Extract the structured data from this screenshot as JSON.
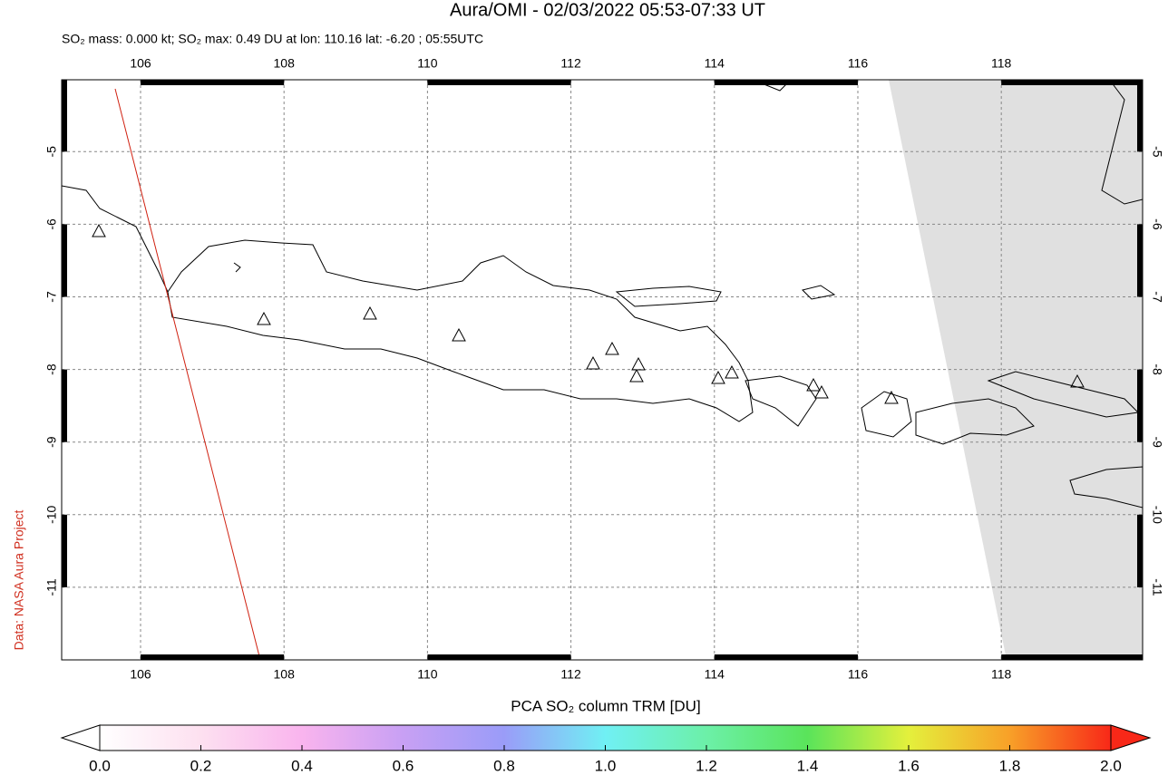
{
  "header": {
    "title": "Aura/OMI - 02/03/2022 05:53-07:33 UT",
    "subtitle": "SO₂ mass: 0.000 kt; SO₂ max: 0.49 DU at lon: 110.16 lat: -6.20 ; 05:55UTC"
  },
  "map": {
    "xlim": [
      104.9,
      119.97
    ],
    "ylim": [
      -12.0,
      -4.01
    ],
    "xticks": [
      106,
      108,
      110,
      112,
      114,
      116,
      118
    ],
    "yticks": [
      -5,
      -6,
      -7,
      -8,
      -9,
      -10,
      -11
    ]
  },
  "colorbar": {
    "label": "PCA SO₂ column TRM [DU]",
    "lim": [
      0,
      2
    ],
    "ticks": [
      {
        "value": 0,
        "label": "0.0"
      },
      0.2,
      0.4,
      0.6,
      0.8,
      {
        "value": 1,
        "label": "1.0"
      },
      1.2,
      1.4,
      1.6,
      1.8,
      {
        "value": 2,
        "label": "2.0"
      }
    ]
  },
  "credit": "Data: NASA Aura Project"
}
